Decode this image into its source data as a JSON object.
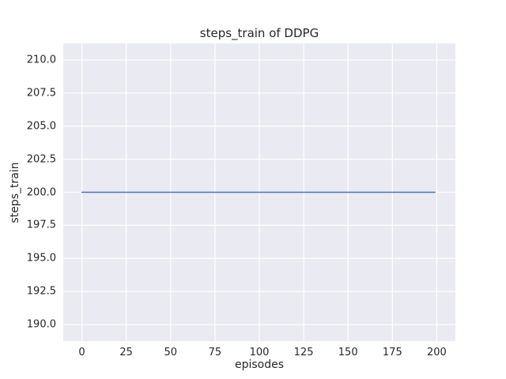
{
  "chart_data": {
    "type": "line",
    "title": "steps_train of DDPG",
    "xlabel": "episodes",
    "ylabel": "steps_train",
    "xlim": [
      -10.5,
      210.5
    ],
    "ylim": [
      188.75,
      211.25
    ],
    "xticks": [
      0,
      25,
      50,
      75,
      100,
      125,
      150,
      175,
      200
    ],
    "xtick_labels": [
      "0",
      "25",
      "50",
      "75",
      "100",
      "125",
      "150",
      "175",
      "200"
    ],
    "yticks": [
      190.0,
      192.5,
      195.0,
      197.5,
      200.0,
      202.5,
      205.0,
      207.5,
      210.0
    ],
    "ytick_labels": [
      "190.0",
      "192.5",
      "195.0",
      "197.5",
      "200.0",
      "202.5",
      "205.0",
      "207.5",
      "210.0"
    ],
    "grid": true,
    "legend": null,
    "plot_background": "#eaeaf2",
    "grid_color": "#ffffff",
    "series": [
      {
        "name": "steps_train",
        "color": "#4c72b0",
        "x": [
          0,
          199
        ],
        "y": [
          200,
          200
        ]
      }
    ]
  }
}
